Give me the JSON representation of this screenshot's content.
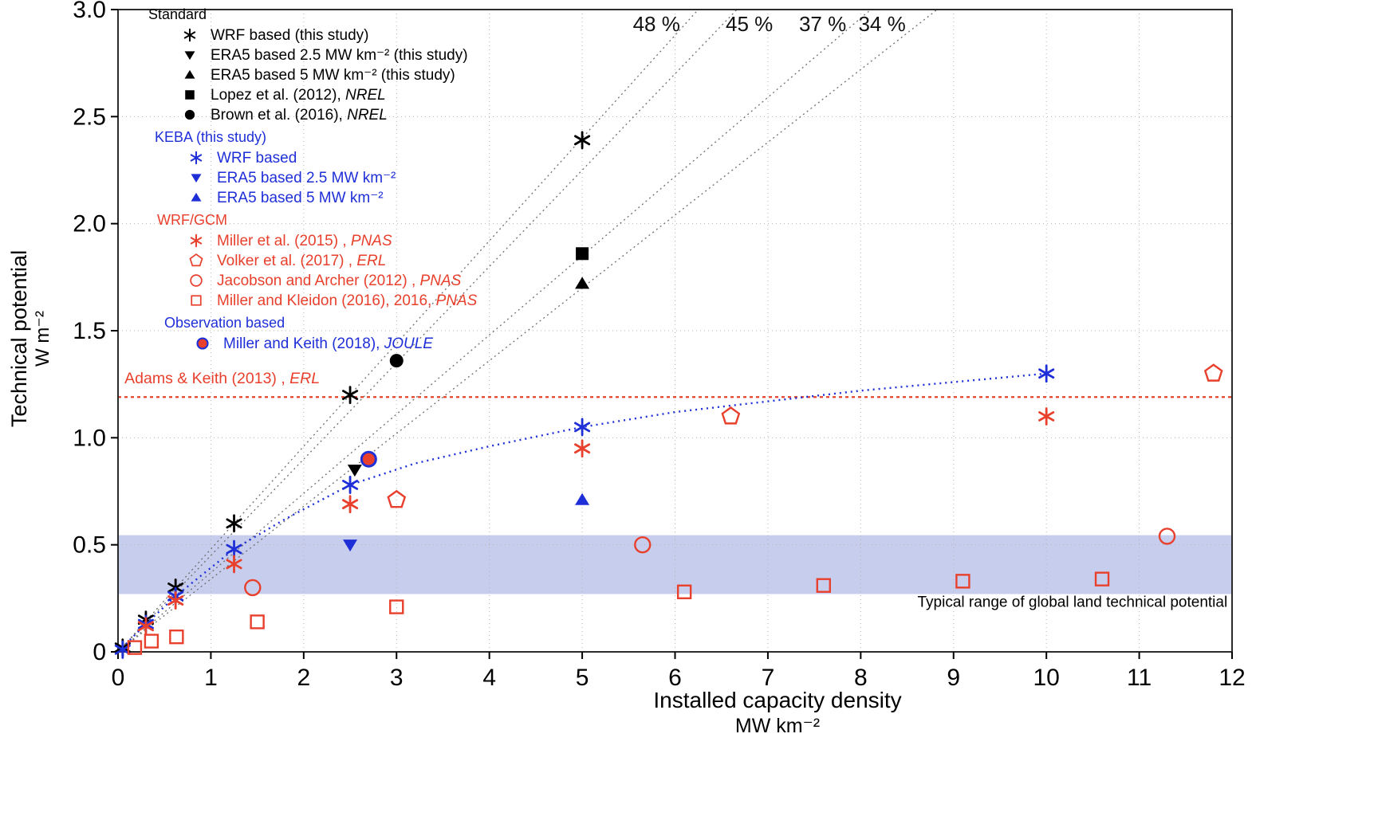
{
  "chart_data": {
    "type": "scatter",
    "title": "",
    "xlabel": "Installed capacity density",
    "xunit": "MW km⁻²",
    "ylabel": "Technical potential",
    "yunit": "W m⁻²",
    "xlim": [
      0,
      12
    ],
    "ylim": [
      0,
      3
    ],
    "grid": true,
    "xticks": [
      0,
      1,
      2,
      3,
      4,
      5,
      6,
      7,
      8,
      9,
      10,
      11,
      12
    ],
    "xtick_labels": [
      "0",
      "1",
      "2",
      "3",
      "4",
      "5",
      "6",
      "7",
      "8",
      "9",
      "10",
      "11",
      "12"
    ],
    "yticks": [
      0,
      0.5,
      1.0,
      1.5,
      2.0,
      2.5,
      3.0
    ],
    "ytick_labels": [
      "0",
      "0.5",
      "1.0",
      "1.5",
      "2.0",
      "2.5",
      "3.0"
    ],
    "capacity_factor_lines": [
      {
        "label": "48 %",
        "slope": 0.48,
        "label_x": 5.8,
        "label_y": 2.9
      },
      {
        "label": "45 %",
        "slope": 0.45,
        "label_x": 6.8,
        "label_y": 2.9
      },
      {
        "label": "37 %",
        "slope": 0.37,
        "label_x": 7.59,
        "label_y": 2.9
      },
      {
        "label": "34 %",
        "slope": 0.34,
        "label_x": 8.23,
        "label_y": 2.9
      }
    ],
    "reference_line": {
      "label": "Adams & Keith (2013) , ",
      "journal": "ERL",
      "y": 1.19,
      "color": "#e8402d",
      "label_x": 0.07,
      "label_y": 1.255
    },
    "band": {
      "label": "Typical range of global land technical potential",
      "y_min": 0.27,
      "y_max": 0.545,
      "color": "#b4bce5",
      "opacity": 0.75,
      "label_x": 11.95,
      "label_y": 0.21
    },
    "keba_fit_curve": {
      "color": "#1f2fd8",
      "points": [
        [
          0,
          0
        ],
        [
          0.3,
          0.13
        ],
        [
          0.62,
          0.26
        ],
        [
          1.25,
          0.48
        ],
        [
          1.8,
          0.62
        ],
        [
          2.5,
          0.78
        ],
        [
          3.2,
          0.88
        ],
        [
          4,
          0.96
        ],
        [
          5,
          1.05
        ],
        [
          6,
          1.12
        ],
        [
          7,
          1.17
        ],
        [
          8,
          1.22
        ],
        [
          9,
          1.26
        ],
        [
          10,
          1.3
        ]
      ]
    },
    "series": [
      {
        "name": "WRF based (this study)",
        "marker": "asterisk",
        "color": "#000000",
        "points": [
          [
            0.05,
            0.02
          ],
          [
            0.3,
            0.15
          ],
          [
            0.62,
            0.3
          ],
          [
            1.25,
            0.6
          ],
          [
            2.5,
            1.2
          ],
          [
            5,
            2.39
          ]
        ]
      },
      {
        "name": "ERA5 based 2.5 MW km-2 (this study)",
        "marker": "triangle-down",
        "color": "#000000",
        "points": [
          [
            2.55,
            0.85
          ]
        ]
      },
      {
        "name": "ERA5 based 5 MW km-2 (this study)",
        "marker": "triangle-up",
        "color": "#000000",
        "points": [
          [
            5,
            1.72
          ]
        ]
      },
      {
        "name": "Lopez et al. (2012), NREL",
        "marker": "square-filled",
        "color": "#000000",
        "points": [
          [
            5,
            1.86
          ]
        ]
      },
      {
        "name": "Brown et al. (2016), NREL",
        "marker": "circle-filled",
        "color": "#000000",
        "points": [
          [
            3,
            1.36
          ]
        ]
      },
      {
        "name": "KEBA WRF based",
        "marker": "asterisk",
        "color": "#1f2fd8",
        "points": [
          [
            0.05,
            0.01
          ],
          [
            0.3,
            0.13
          ],
          [
            0.62,
            0.26
          ],
          [
            1.25,
            0.48
          ],
          [
            2.5,
            0.78
          ],
          [
            5,
            1.05
          ],
          [
            10,
            1.3
          ]
        ]
      },
      {
        "name": "KEBA ERA5 based 2.5 MW km-2",
        "marker": "triangle-down",
        "color": "#1f2fd8",
        "points": [
          [
            2.5,
            0.5
          ]
        ]
      },
      {
        "name": "KEBA ERA5 based 5 MW km-2",
        "marker": "triangle-up",
        "color": "#1f2fd8",
        "points": [
          [
            5,
            0.71
          ]
        ]
      },
      {
        "name": "Miller et al. (2015), PNAS",
        "marker": "asterisk",
        "color": "#e8402d",
        "points": [
          [
            0.3,
            0.12
          ],
          [
            0.62,
            0.24
          ],
          [
            1.25,
            0.41
          ],
          [
            2.5,
            0.69
          ],
          [
            5,
            0.95
          ],
          [
            10,
            1.1
          ]
        ]
      },
      {
        "name": "Volker et al. (2017), ERL",
        "marker": "pentagon-open",
        "color": "#e8402d",
        "points": [
          [
            3,
            0.71
          ],
          [
            6.6,
            1.1
          ],
          [
            11.8,
            1.3
          ]
        ]
      },
      {
        "name": "Jacobson and Archer (2012), PNAS",
        "marker": "circle-open",
        "color": "#e8402d",
        "points": [
          [
            1.45,
            0.3
          ],
          [
            5.65,
            0.5
          ],
          [
            11.3,
            0.54
          ]
        ]
      },
      {
        "name": "Miller and Kleidon (2016), 2016, PNAS",
        "marker": "square-open",
        "color": "#e8402d",
        "points": [
          [
            0.18,
            0.02
          ],
          [
            0.36,
            0.05
          ],
          [
            0.63,
            0.07
          ],
          [
            1.5,
            0.14
          ],
          [
            3,
            0.21
          ],
          [
            6.1,
            0.28
          ],
          [
            7.6,
            0.31
          ],
          [
            9.1,
            0.33
          ],
          [
            10.6,
            0.34
          ]
        ]
      },
      {
        "name": "Miller and Keith (2018), JOULE",
        "marker": "circle-filled-outlined",
        "color": "#e8402d",
        "edge": "#1f2fd8",
        "points": [
          [
            2.7,
            0.9
          ]
        ]
      }
    ]
  },
  "legend": {
    "groups": [
      {
        "title": "Standard",
        "color": "#000000",
        "items": [
          {
            "marker": "asterisk",
            "color": "#000000",
            "label": "WRF based (this study)"
          },
          {
            "marker": "triangle-down",
            "color": "#000000",
            "label": "ERA5 based 2.5 MW km⁻² (this study)"
          },
          {
            "marker": "triangle-up",
            "color": "#000000",
            "label": "ERA5 based 5 MW km⁻² (this study)"
          },
          {
            "marker": "square-filled",
            "color": "#000000",
            "label": "Lopez et al. (2012), ",
            "journal": "NREL"
          },
          {
            "marker": "circle-filled",
            "color": "#000000",
            "label": "Brown et al. (2016), ",
            "journal": "NREL"
          }
        ]
      },
      {
        "title": "KEBA (this study)",
        "color": "#1f2fd8",
        "items": [
          {
            "marker": "asterisk",
            "color": "#1f2fd8",
            "label": "WRF based"
          },
          {
            "marker": "triangle-down",
            "color": "#1f2fd8",
            "label": "ERA5 based 2.5 MW km⁻²"
          },
          {
            "marker": "triangle-up",
            "color": "#1f2fd8",
            "label": "ERA5 based 5 MW km⁻²"
          }
        ]
      },
      {
        "title": "WRF/GCM",
        "color": "#e8402d",
        "items": [
          {
            "marker": "asterisk",
            "color": "#e8402d",
            "label": "Miller et al. (2015) , ",
            "journal": "PNAS"
          },
          {
            "marker": "pentagon-open",
            "color": "#e8402d",
            "label": "Volker et al. (2017) , ",
            "journal": "ERL"
          },
          {
            "marker": "circle-open",
            "color": "#e8402d",
            "label": "Jacobson and Archer (2012) , ",
            "journal": "PNAS"
          },
          {
            "marker": "square-open",
            "color": "#e8402d",
            "label": "Miller and Kleidon (2016), 2016, ",
            "journal": "PNAS"
          }
        ]
      },
      {
        "title": "Observation based",
        "color": "#1f2fd8",
        "items": [
          {
            "marker": "circle-filled-outlined",
            "color": "#e8402d",
            "edge": "#1f2fd8",
            "label": "Miller and Keith (2018), ",
            "journal": "JOULE"
          }
        ]
      }
    ]
  }
}
